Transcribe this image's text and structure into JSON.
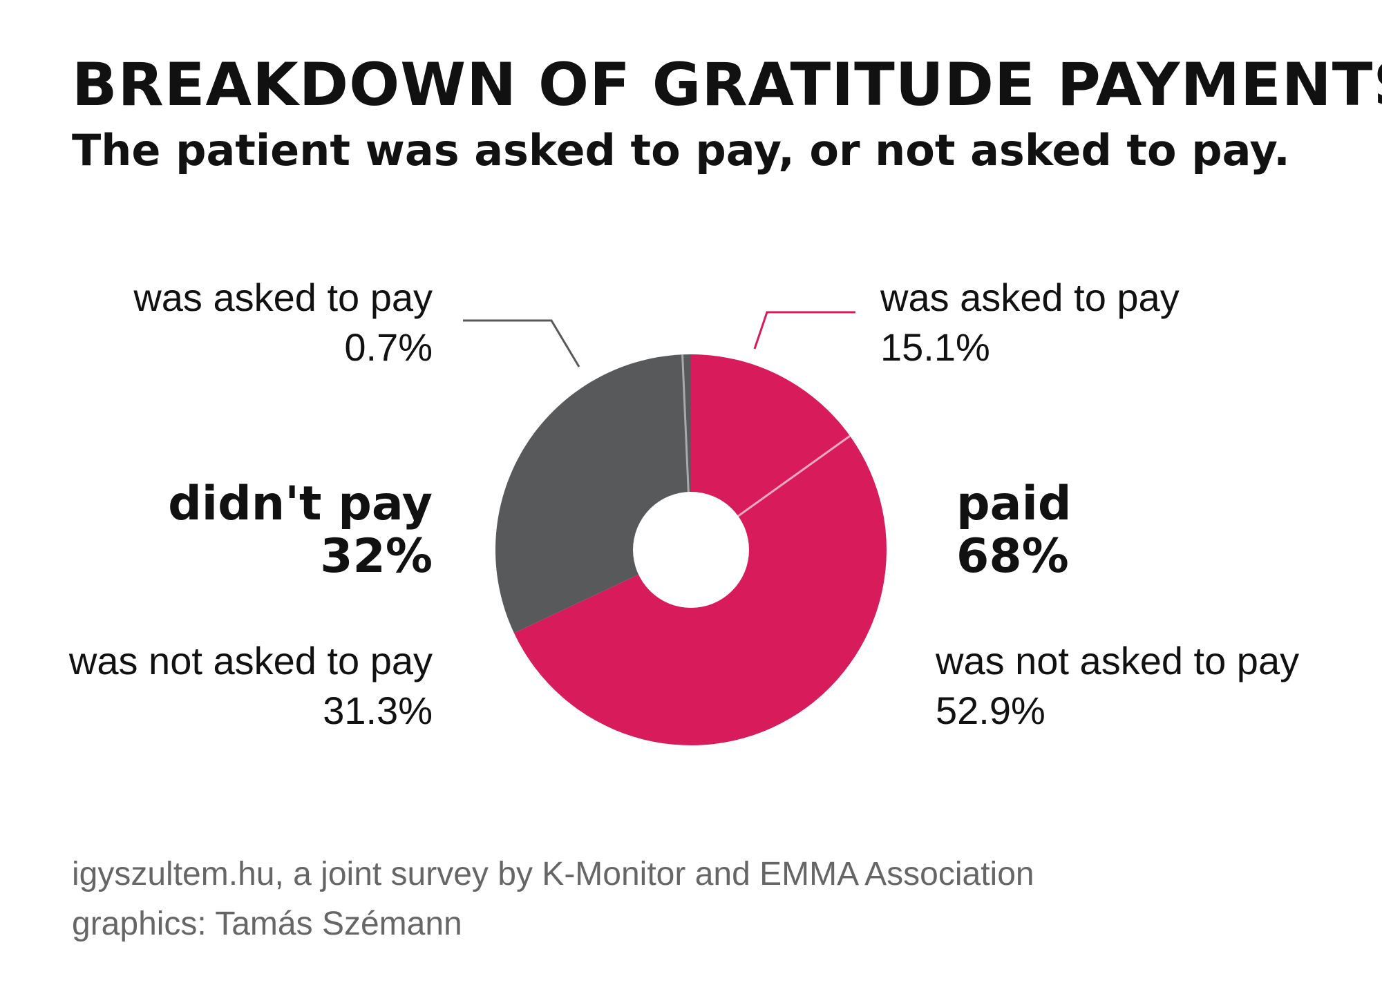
{
  "title": "BREAKDOWN OF GRATITUDE PAYMENTS",
  "subtitle": "The patient was asked to pay, or not asked to pay.",
  "colors": {
    "paid": "#d81b5a",
    "didnt_pay": "#58595b",
    "text": "#111111",
    "source": "#666666"
  },
  "chart_data": {
    "type": "pie",
    "style": "donut",
    "slices": [
      {
        "group": "paid",
        "label": "was asked to pay",
        "value": 15.1,
        "value_label": "15.1%",
        "color": "#d81b5a"
      },
      {
        "group": "paid",
        "label": "was not asked to pay",
        "value": 52.9,
        "value_label": "52.9%",
        "color": "#d81b5a"
      },
      {
        "group": "didn't pay",
        "label": "was not asked to pay",
        "value": 31.3,
        "value_label": "31.3%",
        "color": "#58595b"
      },
      {
        "group": "didn't pay",
        "label": "was asked to pay",
        "value": 0.7,
        "value_label": "0.7%",
        "color": "#58595b"
      }
    ],
    "groups": [
      {
        "name": "didn't pay",
        "value_label": "32%"
      },
      {
        "name": "paid",
        "value_label": "68%"
      }
    ]
  },
  "footer": {
    "source": "igyszultem.hu, a joint survey by K-Monitor and EMMA Association",
    "credit": "graphics: Tamás Szémann"
  }
}
